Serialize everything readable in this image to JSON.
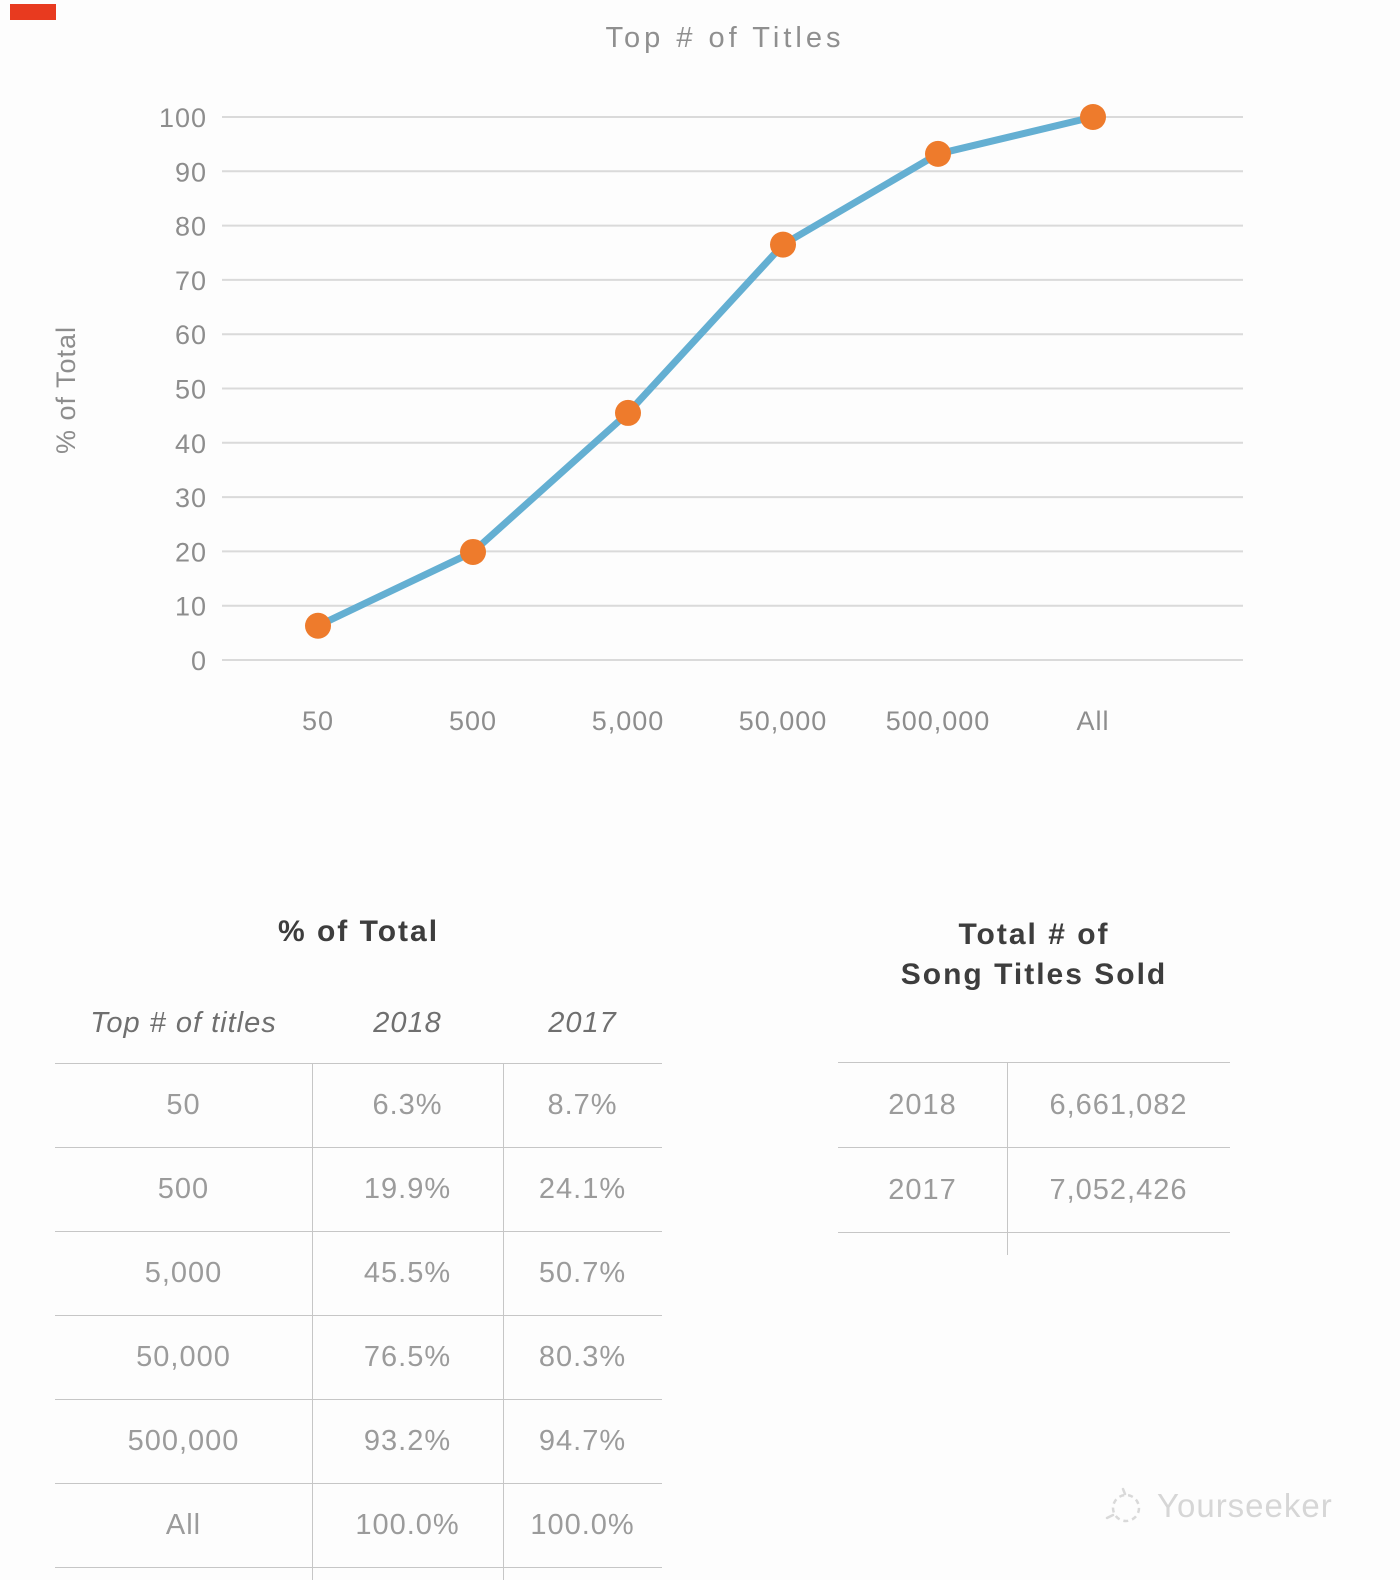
{
  "corner_tag": {
    "color": "#e83a1f"
  },
  "chart_data": {
    "type": "line",
    "title": "Top # of Titles",
    "ylabel": "% of Total",
    "categories": [
      "50",
      "500",
      "5,000",
      "50,000",
      "500,000",
      "All"
    ],
    "series": [
      {
        "name": "2018",
        "values": [
          6.3,
          19.9,
          45.5,
          76.5,
          93.2,
          100.0
        ]
      }
    ],
    "ylim": [
      0,
      100
    ],
    "ytick_step": 10,
    "grid": true,
    "legend": "none",
    "line_color": "#64afd2",
    "marker_color": "#ee7b2c",
    "grid_color": "#dadada",
    "text_color": "#8d8d8d"
  },
  "left_table": {
    "title": "% of Total",
    "headers": [
      "Top # of titles",
      "2018",
      "2017"
    ],
    "rows": [
      [
        "50",
        "6.3%",
        "8.7%"
      ],
      [
        "500",
        "19.9%",
        "24.1%"
      ],
      [
        "5,000",
        "45.5%",
        "50.7%"
      ],
      [
        "50,000",
        "76.5%",
        "80.3%"
      ],
      [
        "500,000",
        "93.2%",
        "94.7%"
      ],
      [
        "All",
        "100.0%",
        "100.0%"
      ]
    ]
  },
  "right_table": {
    "title_line1": "Total # of",
    "title_line2": "Song Titles Sold",
    "rows": [
      [
        "2018",
        "6,661,082"
      ],
      [
        "2017",
        "7,052,426"
      ]
    ]
  },
  "watermark": {
    "text": "Yourseeker"
  }
}
